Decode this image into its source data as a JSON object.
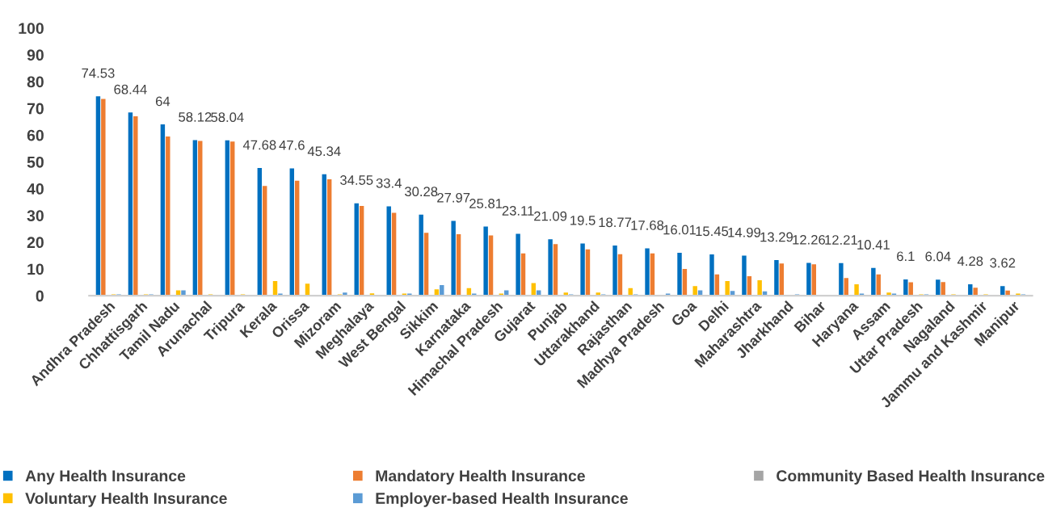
{
  "chart_data": {
    "type": "bar",
    "categories": [
      "Andhra Pradesh",
      "Chhattisgarh",
      "Tamil Nadu",
      "Arunachal",
      "Tripura",
      "Kerala",
      "Orissa",
      "Mizoram",
      "Meghalaya",
      "West Bengal",
      "Sikkim",
      "Karnataka",
      "Himachal Pradesh",
      "Gujarat",
      "Punjab",
      "Uttarakhand",
      "Rajasthan",
      "Madhya Pradesh",
      "Goa",
      "Delhi",
      "Maharashtra",
      "Jharkhand",
      "Bihar",
      "Haryana",
      "Assam",
      "Uttar Pradesh",
      "Nagaland",
      "Jammu and Kashmir",
      "Manipur"
    ],
    "series": [
      {
        "name": "Any Health Insurance",
        "color": "#0070c0",
        "values": [
          74.53,
          68.44,
          64,
          58.12,
          58.04,
          47.68,
          47.6,
          45.34,
          34.55,
          33.4,
          30.28,
          27.97,
          25.81,
          23.11,
          21.09,
          19.5,
          18.77,
          17.68,
          16.01,
          15.45,
          14.99,
          13.29,
          12.26,
          12.21,
          10.41,
          6.1,
          6.04,
          4.28,
          3.62
        ],
        "value_labels": [
          "74.53",
          "68.44",
          "64",
          "58.12",
          "58.04",
          "47.68",
          "47.6",
          "45.34",
          "34.55",
          "33.4",
          "30.28",
          "27.97",
          "25.81",
          "23.11",
          "21.09",
          "19.5",
          "18.77",
          "17.68",
          "16.01",
          "15.45",
          "14.99",
          "13.29",
          "12.26",
          "12.21",
          "10.41",
          "6.1",
          "6.04",
          "4.28",
          "3.62"
        ]
      },
      {
        "name": "Mandatory Health Insurance",
        "color": "#ed7d31",
        "values": [
          73.5,
          67,
          59.5,
          57.8,
          57.6,
          41,
          43,
          43.5,
          33.5,
          31,
          23.5,
          23,
          22.5,
          15.8,
          19.3,
          17.3,
          15.5,
          15.8,
          10,
          8,
          7.3,
          12,
          11.7,
          6.6,
          8,
          5,
          5.1,
          3,
          1.9
        ]
      },
      {
        "name": "Community Based Health Insurance",
        "color": "#a5a5a5",
        "values": [
          0,
          0,
          0,
          0,
          0,
          0,
          0,
          0,
          0,
          0,
          0,
          0.3,
          0,
          0,
          0,
          0,
          0,
          0,
          0,
          0,
          0,
          0,
          0,
          0,
          0,
          0,
          0,
          0,
          0
        ]
      },
      {
        "name": "Voluntary Health Insurance",
        "color": "#ffc000",
        "values": [
          0.5,
          0.5,
          2,
          0.5,
          0.5,
          5.5,
          4.5,
          0.5,
          0.9,
          0.8,
          2.4,
          2.8,
          0.8,
          4.7,
          1.2,
          1.2,
          2.8,
          0,
          3.6,
          5.5,
          5.8,
          0,
          0,
          4.3,
          1.2,
          0.5,
          0.5,
          0.5,
          0.8
        ]
      },
      {
        "name": "Employer-based Health Insurance",
        "color": "#5b9bd5",
        "values": [
          0.5,
          0.5,
          2,
          0,
          0,
          0.8,
          0,
          1.2,
          0,
          0.8,
          4,
          0.8,
          2,
          2,
          0.5,
          0.5,
          0.5,
          0.8,
          2,
          1.8,
          1.6,
          0.5,
          0,
          0.8,
          0.8,
          0.5,
          0,
          0,
          0.5
        ]
      }
    ],
    "ylim": [
      0,
      100
    ],
    "yticks": [
      0,
      10,
      20,
      30,
      40,
      50,
      60,
      70,
      80,
      90,
      100
    ],
    "grid": false,
    "legend": "bottom"
  }
}
